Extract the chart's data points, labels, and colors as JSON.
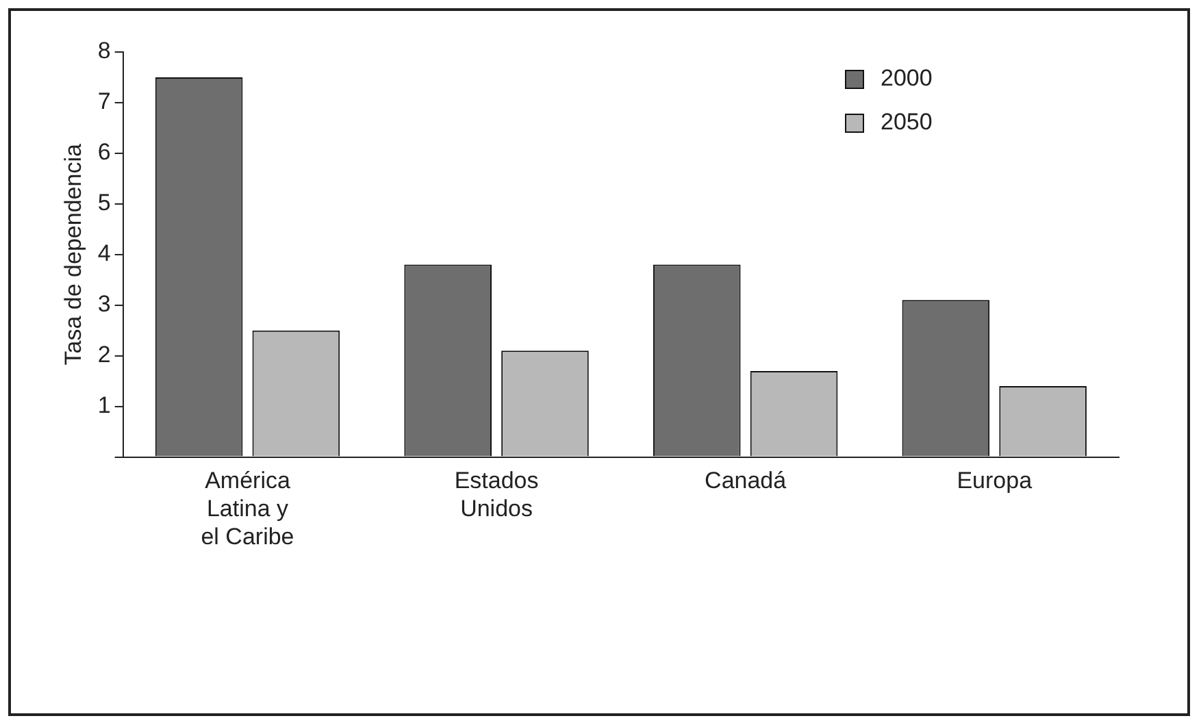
{
  "chart_data": {
    "type": "bar",
    "ylabel": "Tasa de dependencia",
    "categories": [
      "América Latina y el Caribe",
      "Estados Unidos",
      "Canadá",
      "Europa"
    ],
    "series": [
      {
        "name": "2000",
        "color": "#6e6e6e",
        "values": [
          7.5,
          3.8,
          3.8,
          3.1
        ]
      },
      {
        "name": "2050",
        "color": "#b8b8b8",
        "values": [
          2.5,
          2.1,
          1.7,
          1.4
        ]
      }
    ],
    "ylim": [
      0,
      8
    ],
    "yticks": [
      {
        "value": 0,
        "label": null
      },
      1,
      2,
      3,
      4,
      5,
      6,
      7,
      8
    ],
    "grid": false,
    "legend": "top right"
  }
}
